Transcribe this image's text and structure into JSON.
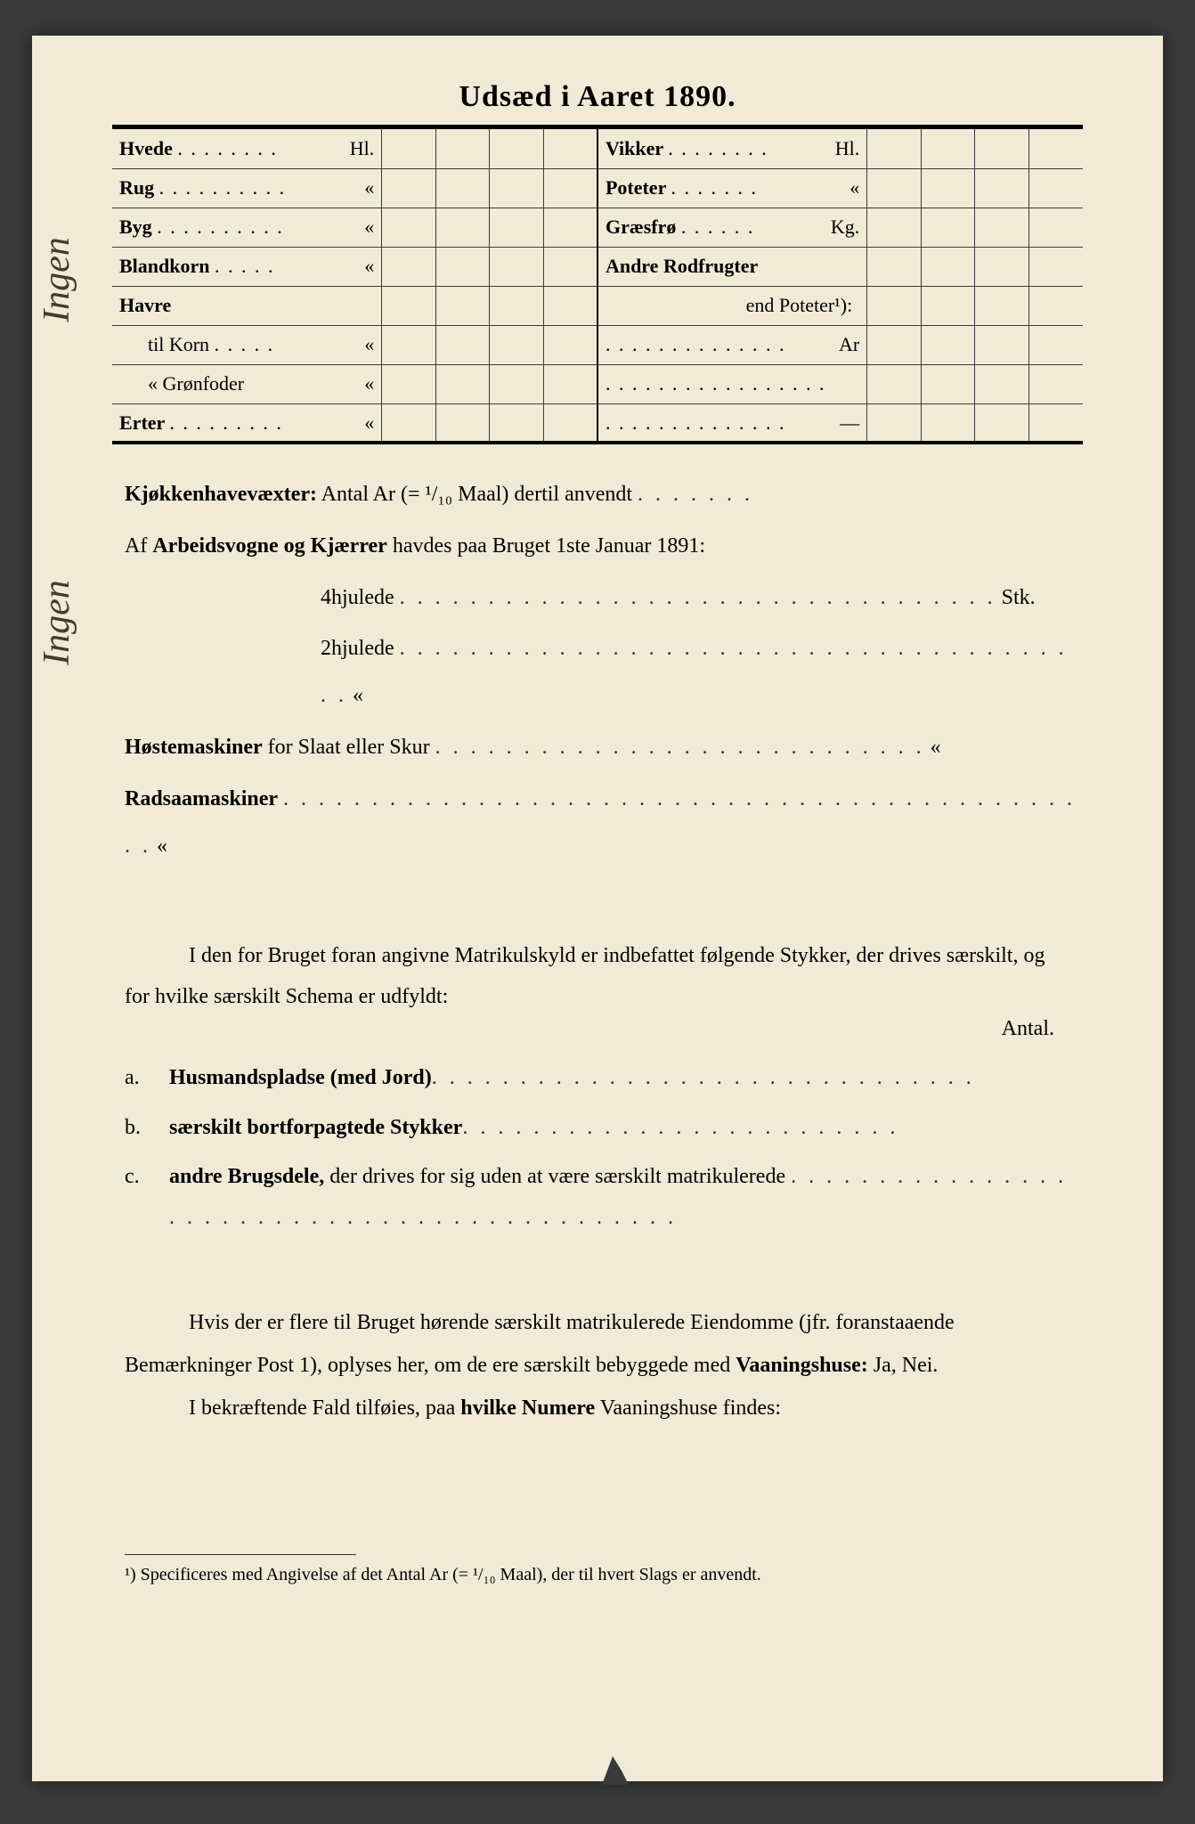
{
  "title": "Udsæd i Aaret 1890.",
  "harvest": {
    "left_rows": [
      {
        "label": "Hvede",
        "unit": "Hl.",
        "dots": ". . . . . . . ."
      },
      {
        "label": "Rug",
        "unit": "«",
        "dots": ". . . . . . . . . ."
      },
      {
        "label": "Byg",
        "unit": "«",
        "dots": ". . . . . . . . . ."
      },
      {
        "label": "Blandkorn",
        "unit": "«",
        "dots": ". . . . ."
      },
      {
        "label": "Havre",
        "unit": "",
        "dots": ""
      },
      {
        "label": "til Korn",
        "unit": "«",
        "dots": ". . . . .",
        "sub": true
      },
      {
        "label": "«   Grønfoder",
        "unit": "«",
        "dots": "",
        "sub": true
      },
      {
        "label": "Erter",
        "unit": "«",
        "dots": ". . . . . . . . ."
      }
    ],
    "right_rows": [
      {
        "label": "Vikker",
        "unit": "Hl.",
        "dots": ". . . . . . . ."
      },
      {
        "label": "Poteter",
        "unit": "«",
        "dots": ". . . . . . ."
      },
      {
        "label": "Græsfrø",
        "unit": "Kg.",
        "dots": ". . . . . ."
      },
      {
        "label": "Andre Rodfrugter",
        "unit": "",
        "dots": ""
      },
      {
        "label": "end Poteter¹):",
        "unit": "",
        "dots": "",
        "sub": true
      },
      {
        "label": "",
        "unit": "Ar",
        "dots": ". . . . . . . . . . . . . ."
      },
      {
        "label": "",
        "unit": "",
        "dots": ". . . . . . . . . . . . . . . . ."
      },
      {
        "label": "",
        "unit": "—",
        "dots": ". . . . . . . . . . . . . ."
      }
    ]
  },
  "kjokken": {
    "label": "Kjøkkenhavevæxter:",
    "text": "Antal Ar (= ¹/₁₀ Maal) dertil anvendt",
    "dots": ". . . . . . ."
  },
  "wagons": {
    "prefix": "Af",
    "bold": "Arbeidsvogne og Kjærrer",
    "suffix": "havdes paa Bruget 1ste Januar 1891:",
    "line1": "4hjulede",
    "line1_dots": ". . . . . . . . . . . . . . . . . . . . . . . . . . . . . . . . . .",
    "line1_unit": "Stk.",
    "line2": "2hjulede",
    "line2_dots": ". . . . . . . . . . . . . . . . . . . . . . . . . . . . . . . . . . . . . . . .",
    "line2_unit": "«"
  },
  "hoste": {
    "bold": "Høstemaskiner",
    "text": "for Slaat eller Skur",
    "dots": ". . . . . . . . . . . . . . . . . . . . . . . . . . . .",
    "unit": "«"
  },
  "radsaa": {
    "bold": "Radsaamaskiner",
    "dots": ". . . . . . . . . . . . . . . . . . . . . . . . . . . . . . . . . . . . . . . . . . . . . . .",
    "unit": "«"
  },
  "matrikul": {
    "intro": "I den for Bruget foran angivne Matrikulskyld er indbefattet følgende Stykker, der drives særskilt, og for hvilke særskilt Schema er udfyldt:",
    "antal": "Antal.",
    "items": [
      {
        "letter": "a.",
        "bold": "Husmandspladse (med Jord)",
        "dots": ". . . . . . . . . . . . . . . . . . . . . . . . . . . . . . ."
      },
      {
        "letter": "b.",
        "bold": "særskilt bortforpagtede Stykker",
        "dots": ". . . . . . . . . . . . . . . . . . . . . . . . ."
      },
      {
        "letter": "c.",
        "bold": "andre Brugsdele,",
        "text": "der drives for sig uden at være særskilt matrikulerede",
        "dots": ". . . . . . . . . . . . . . . . . . . . . . . . . . . . . . . . . . . . . . . . . . . . ."
      }
    ]
  },
  "vaaning": {
    "para1": "Hvis der er flere til Bruget hørende særskilt matrikulerede Eiendomme (jfr. foranstaaende Bemærkninger Post 1), oplyses her, om de ere særskilt bebyggede med",
    "para1_bold": "Vaaningshuse:",
    "para1_suffix": "Ja, Nei.",
    "para2": "I bekræftende Fald tilføies, paa",
    "para2_bold": "hvilke Numere",
    "para2_suffix": "Vaaningshuse findes:"
  },
  "footnote": {
    "text": "¹) Specificeres med Angivelse af det Antal Ar (= ¹/₁₀ Maal), der til hvert Slags er anvendt."
  },
  "handwriting": "Ingen"
}
